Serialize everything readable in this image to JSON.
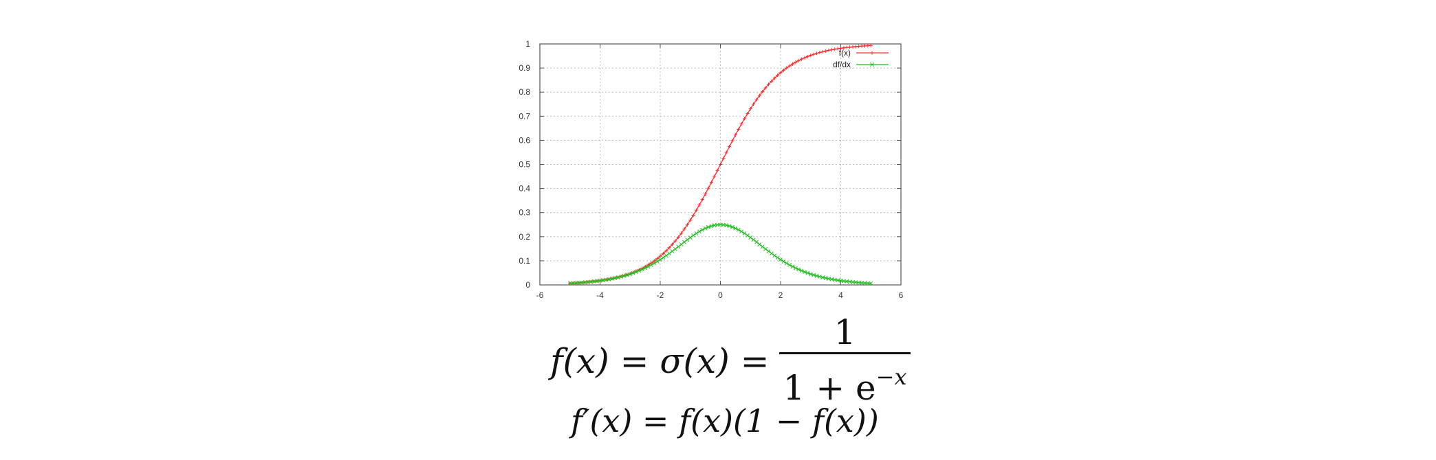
{
  "chart_data": {
    "type": "line",
    "xlim": [
      -6,
      6
    ],
    "ylim": [
      0,
      1
    ],
    "x_ticks": [
      "-6",
      "-4",
      "-2",
      "0",
      "2",
      "4",
      "6"
    ],
    "y_ticks": [
      "0",
      "0.1",
      "0.2",
      "0.3",
      "0.4",
      "0.5",
      "0.6",
      "0.7",
      "0.8",
      "0.9",
      "1"
    ],
    "grid": true,
    "legend_position": "top-right",
    "x_range": [
      -5,
      5
    ],
    "x_step": 0.1,
    "series": [
      {
        "name": "f(x)",
        "color": "#ff2a2a",
        "marker": "plus",
        "function": "sigmoid"
      },
      {
        "name": "df/dx",
        "color": "#1fbf1f",
        "marker": "x",
        "function": "sigmoid_derivative"
      }
    ]
  },
  "formulas": {
    "line1": {
      "lhs": "f(x) = σ(x) =",
      "numerator": "1",
      "denominator_base": "1 + e",
      "denominator_exp": "−x"
    },
    "line2": "f′(x) = f(x)(1 − f(x))"
  }
}
